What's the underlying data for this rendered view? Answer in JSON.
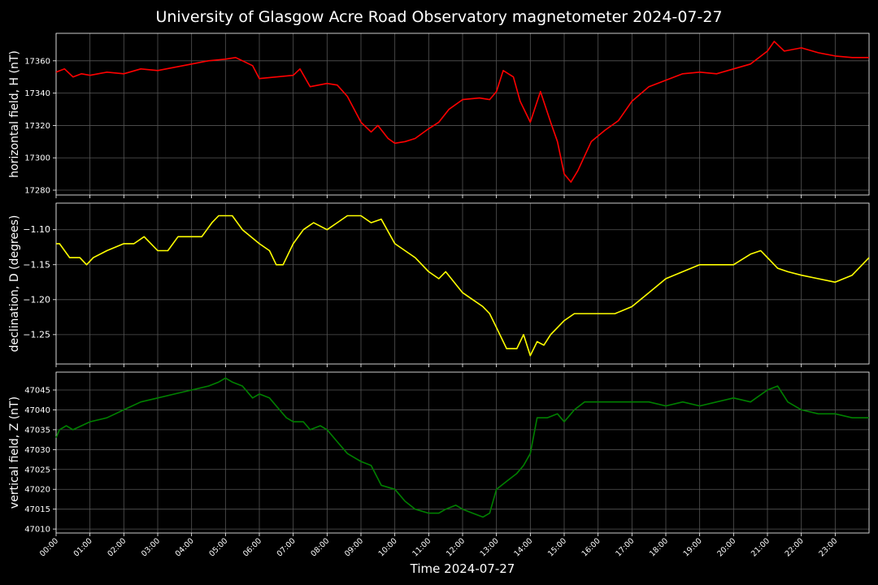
{
  "title": "University of Glasgow Acre Road Observatory magnetometer 2024-07-27",
  "xlabel": "Time 2024-07-27",
  "x_ticks": [
    "00:00",
    "01:00",
    "02:00",
    "03:00",
    "04:00",
    "05:00",
    "06:00",
    "07:00",
    "08:00",
    "09:00",
    "10:00",
    "11:00",
    "12:00",
    "13:00",
    "14:00",
    "15:00",
    "16:00",
    "17:00",
    "18:00",
    "19:00",
    "20:00",
    "21:00",
    "22:00",
    "23:00"
  ],
  "chart_data": [
    {
      "type": "line",
      "ylabel": "horizontal field, H (nT)",
      "color": "#ff0000",
      "ylim": [
        17277,
        17377
      ],
      "yticks": [
        17280,
        17300,
        17320,
        17340,
        17360
      ],
      "xlim": [
        0,
        24
      ],
      "grid": true,
      "series": [
        {
          "x": [
            0,
            0.25,
            0.5,
            0.75,
            1,
            1.5,
            2,
            2.5,
            3,
            3.5,
            4,
            4.5,
            5,
            5.3,
            5.5,
            5.8,
            6,
            6.5,
            7,
            7.2,
            7.5,
            8,
            8.3,
            8.6,
            9,
            9.3,
            9.5,
            9.8,
            10,
            10.3,
            10.6,
            11,
            11.3,
            11.6,
            12,
            12.5,
            12.8,
            13,
            13.2,
            13.5,
            13.7,
            14,
            14.3,
            14.6,
            14.8,
            15,
            15.2,
            15.4,
            15.8,
            16.2,
            16.6,
            17,
            17.5,
            18,
            18.5,
            19,
            19.5,
            20,
            20.5,
            21,
            21.2,
            21.5,
            22,
            22.5,
            23,
            23.5,
            24
          ],
          "y": [
            17353,
            17355,
            17350,
            17352,
            17351,
            17353,
            17352,
            17355,
            17354,
            17356,
            17358,
            17360,
            17361,
            17362,
            17360,
            17357,
            17349,
            17350,
            17351,
            17355,
            17344,
            17346,
            17345,
            17338,
            17322,
            17316,
            17320,
            17312,
            17309,
            17310,
            17312,
            17318,
            17322,
            17330,
            17336,
            17337,
            17336,
            17341,
            17354,
            17350,
            17335,
            17322,
            17341,
            17322,
            17310,
            17290,
            17285,
            17292,
            17310,
            17317,
            17323,
            17335,
            17344,
            17348,
            17352,
            17353,
            17352,
            17355,
            17358,
            17366,
            17372,
            17366,
            17368,
            17365,
            17363,
            17362,
            17362
          ]
        }
      ]
    },
    {
      "type": "line",
      "ylabel": "declination, D (degrees)",
      "color": "#ffff00",
      "ylim": [
        -1.292,
        -1.062
      ],
      "yticks": [
        -1.1,
        -1.15,
        -1.2,
        -1.25
      ],
      "tick_labels": [
        "−1.10",
        "−1.15",
        "−1.20",
        "−1.25"
      ],
      "xlim": [
        0,
        24
      ],
      "grid": true,
      "series": [
        {
          "x": [
            0,
            0.1,
            0.4,
            0.7,
            0.9,
            1.1,
            1.5,
            2,
            2.3,
            2.6,
            3,
            3.3,
            3.6,
            4,
            4.3,
            4.6,
            4.8,
            5,
            5.2,
            5.5,
            6,
            6.3,
            6.5,
            6.7,
            7,
            7.3,
            7.6,
            8,
            8.3,
            8.6,
            9,
            9.3,
            9.6,
            10,
            10.3,
            10.6,
            11,
            11.3,
            11.5,
            12,
            12.3,
            12.6,
            12.8,
            13,
            13.3,
            13.6,
            13.8,
            14,
            14.2,
            14.4,
            14.6,
            14.8,
            15,
            15.3,
            15.6,
            16,
            16.5,
            17,
            17.5,
            18,
            18.5,
            19,
            19.5,
            20,
            20.5,
            20.8,
            21,
            21.3,
            21.6,
            22,
            22.5,
            23,
            23.5,
            24
          ],
          "y": [
            -1.12,
            -1.12,
            -1.14,
            -1.14,
            -1.15,
            -1.14,
            -1.13,
            -1.12,
            -1.12,
            -1.11,
            -1.13,
            -1.13,
            -1.11,
            -1.11,
            -1.11,
            -1.09,
            -1.08,
            -1.08,
            -1.08,
            -1.1,
            -1.12,
            -1.13,
            -1.15,
            -1.15,
            -1.12,
            -1.1,
            -1.09,
            -1.1,
            -1.09,
            -1.08,
            -1.08,
            -1.09,
            -1.085,
            -1.12,
            -1.13,
            -1.14,
            -1.16,
            -1.17,
            -1.16,
            -1.19,
            -1.2,
            -1.21,
            -1.22,
            -1.24,
            -1.27,
            -1.27,
            -1.25,
            -1.28,
            -1.26,
            -1.265,
            -1.25,
            -1.24,
            -1.23,
            -1.22,
            -1.22,
            -1.22,
            -1.22,
            -1.21,
            -1.19,
            -1.17,
            -1.16,
            -1.15,
            -1.15,
            -1.15,
            -1.135,
            -1.13,
            -1.14,
            -1.155,
            -1.16,
            -1.165,
            -1.17,
            -1.175,
            -1.165,
            -1.14
          ]
        }
      ]
    },
    {
      "type": "line",
      "ylabel": "vertical field, Z (nT)",
      "color": "#008000",
      "ylim": [
        47009,
        47049.5
      ],
      "yticks": [
        47010,
        47015,
        47020,
        47025,
        47030,
        47035,
        47040,
        47045
      ],
      "xlim": [
        0,
        24
      ],
      "grid": true,
      "series": [
        {
          "x": [
            0,
            0.1,
            0.3,
            0.5,
            1,
            1.5,
            2,
            2.5,
            3,
            3.5,
            4,
            4.5,
            4.8,
            5,
            5.2,
            5.5,
            5.8,
            6,
            6.3,
            6.5,
            6.8,
            7,
            7.3,
            7.5,
            7.8,
            8,
            8.3,
            8.6,
            9,
            9.3,
            9.6,
            10,
            10.3,
            10.6,
            11,
            11.3,
            11.5,
            11.8,
            12,
            12.3,
            12.6,
            12.8,
            13,
            13.3,
            13.6,
            13.8,
            14,
            14.2,
            14.5,
            14.8,
            15,
            15.3,
            15.6,
            16,
            16.5,
            17,
            17.5,
            18,
            18.5,
            19,
            19.5,
            20,
            20.5,
            21,
            21.3,
            21.6,
            22,
            22.5,
            23,
            23.5,
            24
          ],
          "y": [
            47033,
            47035,
            47036,
            47035,
            47037,
            47038,
            47040,
            47042,
            47043,
            47044,
            47045,
            47046,
            47047,
            47048,
            47047,
            47046,
            47043,
            47044,
            47043,
            47041,
            47038,
            47037,
            47037,
            47035,
            47036,
            47035,
            47032,
            47029,
            47027,
            47026,
            47021,
            47020,
            47017,
            47015,
            47014,
            47014,
            47015,
            47016,
            47015,
            47014,
            47013,
            47014,
            47020,
            47022,
            47024,
            47026,
            47029,
            47038,
            47038,
            47039,
            47037,
            47040,
            47042,
            47042,
            47042,
            47042,
            47042,
            47041,
            47042,
            47041,
            47042,
            47043,
            47042,
            47045,
            47046,
            47042,
            47040,
            47039,
            47039,
            47038,
            47038
          ]
        }
      ]
    }
  ]
}
